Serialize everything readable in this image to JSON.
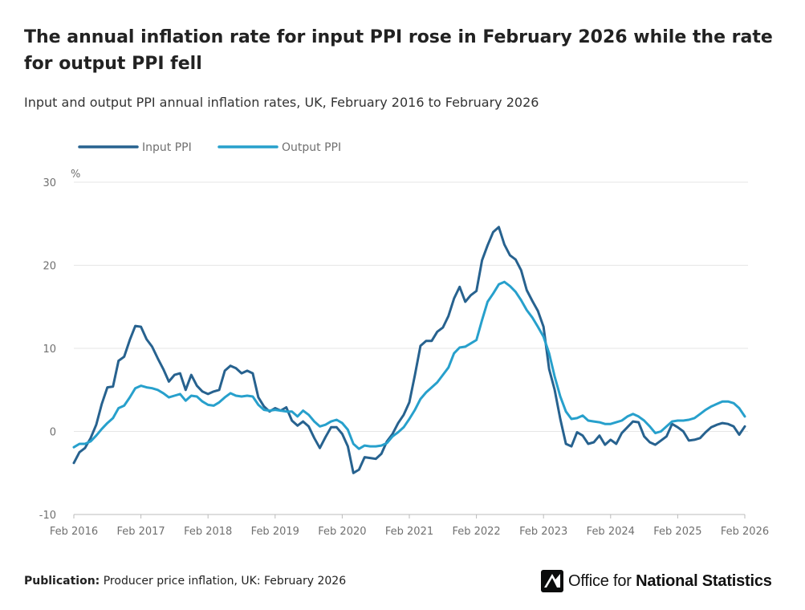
{
  "header": {
    "title": "The annual inflation rate for input PPI rose in February 2026 while the rate for output PPI fell",
    "subtitle": "Input and output PPI annual inflation rates, UK, February 2016 to February 2026"
  },
  "footer": {
    "publication_label": "Publication:",
    "publication_text": "Producer price inflation, UK: February 2026",
    "logo_text_regular": "Office for ",
    "logo_text_bold": "National Statistics"
  },
  "colors": {
    "input": "#27628f",
    "output": "#27a0cc",
    "grid": "#e6e6e6",
    "axis": "#bbbbbb"
  },
  "chart_data": {
    "type": "line",
    "title": "The annual inflation rate for input PPI rose in February 2026 while the rate for output PPI fell",
    "xlabel": "",
    "ylabel": "%",
    "ylim": [
      -10,
      30
    ],
    "yticks": [
      -10,
      0,
      10,
      20,
      30
    ],
    "xlim_months": [
      0,
      120
    ],
    "xticks": [
      {
        "m": 0,
        "label": "Feb 2016"
      },
      {
        "m": 12,
        "label": "Feb 2017"
      },
      {
        "m": 24,
        "label": "Feb 2018"
      },
      {
        "m": 36,
        "label": "Feb 2019"
      },
      {
        "m": 48,
        "label": "Feb 2020"
      },
      {
        "m": 60,
        "label": "Feb 2021"
      },
      {
        "m": 72,
        "label": "Feb 2022"
      },
      {
        "m": 84,
        "label": "Feb 2023"
      },
      {
        "m": 96,
        "label": "Feb 2024"
      },
      {
        "m": 108,
        "label": "Feb 2025"
      },
      {
        "m": 120,
        "label": "Feb 2026"
      }
    ],
    "legend_position": "top-left",
    "series": [
      {
        "name": "Input PPI",
        "key": "input",
        "values": [
          -3.8,
          -2.5,
          -2,
          -0.8,
          0.8,
          3.3,
          5.3,
          5.4,
          8.5,
          9,
          11,
          12.7,
          12.6,
          11.1,
          10.2,
          8.8,
          7.5,
          6,
          6.8,
          7,
          5,
          6.8,
          5.5,
          4.8,
          4.5,
          4.8,
          5,
          7.3,
          7.9,
          7.6,
          7,
          7.3,
          7,
          4.1,
          3,
          2.4,
          2.8,
          2.5,
          2.9,
          1.3,
          0.7,
          1.2,
          0.6,
          -0.8,
          -2,
          -0.7,
          0.5,
          0.5,
          -0.3,
          -1.8,
          -5,
          -4.6,
          -3.1,
          -3.2,
          -3.3,
          -2.7,
          -1.2,
          -0.3,
          1,
          2,
          3.5,
          6.8,
          10.3,
          10.9,
          10.9,
          12,
          12.5,
          13.9,
          16,
          17.4,
          15.6,
          16.4,
          16.9,
          20.6,
          22.4,
          24,
          24.6,
          22.5,
          21.2,
          20.7,
          19.4,
          17,
          15.7,
          14.5,
          12.6,
          7.5,
          5,
          1.5,
          -1.5,
          -1.8,
          -0.1,
          -0.5,
          -1.5,
          -1.3,
          -0.5,
          -1.6,
          -1,
          -1.5,
          -0.2,
          0.5,
          1.2,
          1.1,
          -0.6,
          -1.3,
          -1.6,
          -1.1,
          -0.6,
          0.9,
          0.5,
          0,
          -1.1,
          -1,
          -0.8,
          -0.1,
          0.5,
          0.8,
          1,
          0.9,
          0.6,
          -0.4,
          0.6
        ]
      },
      {
        "name": "Output PPI",
        "key": "output",
        "values": [
          -1.9,
          -1.5,
          -1.5,
          -1.2,
          -0.5,
          0.3,
          1,
          1.6,
          2.8,
          3.1,
          4.1,
          5.2,
          5.5,
          5.3,
          5.2,
          5,
          4.6,
          4.1,
          4.3,
          4.5,
          3.7,
          4.3,
          4.2,
          3.6,
          3.2,
          3.1,
          3.5,
          4.1,
          4.6,
          4.3,
          4.2,
          4.3,
          4.2,
          3.2,
          2.6,
          2.5,
          2.6,
          2.5,
          2.4,
          2.4,
          1.8,
          2.5,
          2,
          1.2,
          0.6,
          0.8,
          1.2,
          1.4,
          1,
          0.2,
          -1.5,
          -2.1,
          -1.7,
          -1.8,
          -1.8,
          -1.7,
          -1.4,
          -0.6,
          -0.1,
          0.5,
          1.5,
          2.6,
          3.9,
          4.7,
          5.3,
          5.9,
          6.8,
          7.7,
          9.4,
          10.1,
          10.2,
          10.6,
          11,
          13.4,
          15.6,
          16.6,
          17.7,
          18,
          17.5,
          16.8,
          15.8,
          14.6,
          13.7,
          12.6,
          11.4,
          9.4,
          6.6,
          4.2,
          2.4,
          1.5,
          1.6,
          1.9,
          1.3,
          1.2,
          1.1,
          0.9,
          0.9,
          1.1,
          1.3,
          1.8,
          2.1,
          1.8,
          1.3,
          0.6,
          -0.2,
          0,
          0.6,
          1.2,
          1.3,
          1.3,
          1.4,
          1.6,
          2.1,
          2.6,
          3,
          3.3,
          3.6,
          3.6,
          3.4,
          2.8,
          1.8
        ]
      }
    ]
  }
}
